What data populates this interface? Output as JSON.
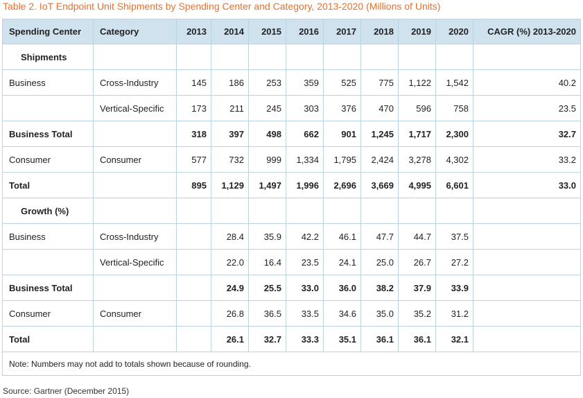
{
  "title": "Table 2. IoT Endpoint Unit Shipments by Spending Center and Category, 2013-2020 (Millions of Units)",
  "headers": [
    "Spending Center",
    "Category",
    "2013",
    "2014",
    "2015",
    "2016",
    "2017",
    "2018",
    "2019",
    "2020",
    "CAGR (%) 2013-2020"
  ],
  "sections": [
    {
      "label": "Shipments",
      "rows": [
        {
          "center": "Business",
          "category": "Cross-Industry",
          "values": [
            "145",
            "186",
            "253",
            "359",
            "525",
            "775",
            "1,122",
            "1,542"
          ],
          "cagr": "40.2",
          "bold": false
        },
        {
          "center": "",
          "category": "Vertical-Specific",
          "values": [
            "173",
            "211",
            "245",
            "303",
            "376",
            "470",
            "596",
            "758"
          ],
          "cagr": "23.5",
          "bold": false
        },
        {
          "center": "Business Total",
          "category": "",
          "values": [
            "318",
            "397",
            "498",
            "662",
            "901",
            "1,245",
            "1,717",
            "2,300"
          ],
          "cagr": "32.7",
          "bold": true
        },
        {
          "center": "Consumer",
          "category": "Consumer",
          "values": [
            "577",
            "732",
            "999",
            "1,334",
            "1,795",
            "2,424",
            "3,278",
            "4,302"
          ],
          "cagr": "33.2",
          "bold": false
        },
        {
          "center": "Total",
          "category": "",
          "values": [
            "895",
            "1,129",
            "1,497",
            "1,996",
            "2,696",
            "3,669",
            "4,995",
            "6,601"
          ],
          "cagr": "33.0",
          "bold": true
        }
      ]
    },
    {
      "label": "Growth (%)",
      "rows": [
        {
          "center": "Business",
          "category": "Cross-Industry",
          "values": [
            "",
            "28.4",
            "35.9",
            "42.2",
            "46.1",
            "47.7",
            "44.7",
            "37.5"
          ],
          "cagr": "",
          "bold": false
        },
        {
          "center": "",
          "category": "Vertical-Specific",
          "values": [
            "",
            "22.0",
            "16.4",
            "23.5",
            "24.1",
            "25.0",
            "26.7",
            "27.2"
          ],
          "cagr": "",
          "bold": false
        },
        {
          "center": "Business Total",
          "category": "",
          "values": [
            "",
            "24.9",
            "25.5",
            "33.0",
            "36.0",
            "38.2",
            "37.9",
            "33.9"
          ],
          "cagr": "",
          "bold": true
        },
        {
          "center": "Consumer",
          "category": "Consumer",
          "values": [
            "",
            "26.8",
            "36.5",
            "33.5",
            "34.6",
            "35.0",
            "35.2",
            "31.2"
          ],
          "cagr": "",
          "bold": false
        },
        {
          "center": "Total",
          "category": "",
          "values": [
            "",
            "26.1",
            "32.7",
            "33.3",
            "35.1",
            "36.1",
            "36.1",
            "32.1"
          ],
          "cagr": "",
          "bold": true
        }
      ]
    }
  ],
  "note": "Note: Numbers may not add to totals shown because of rounding.",
  "source": "Source: Gartner (December 2015)",
  "colors": {
    "title": "#e8702a",
    "header_bg": "#cfe2ee",
    "border": "#b9d3e3"
  }
}
